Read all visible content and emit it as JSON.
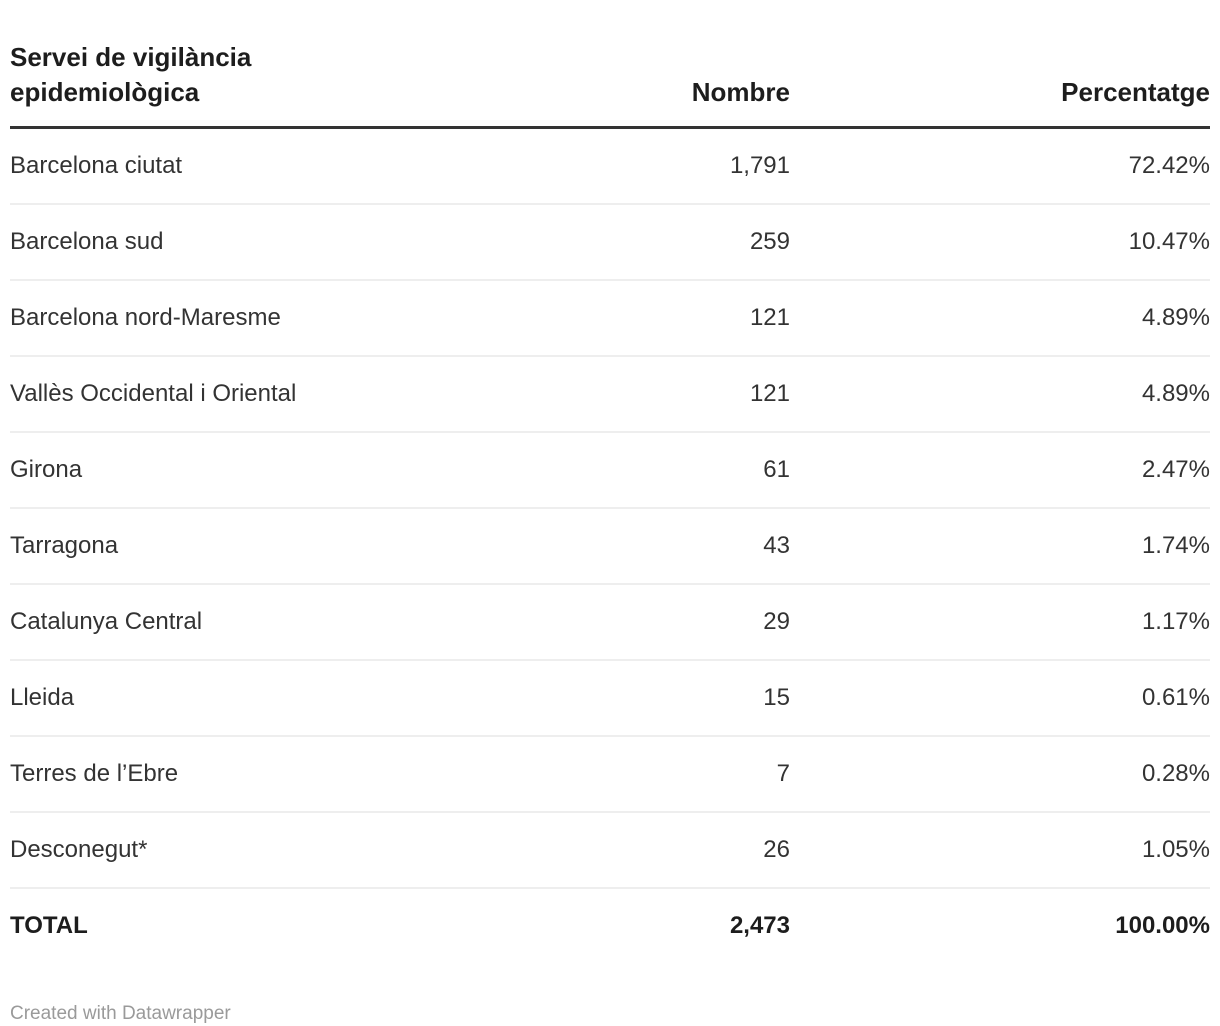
{
  "header": {
    "col1": "Servei de vigilància epidemiològica",
    "col2": "Nombre",
    "col3": "Percentatge"
  },
  "rows": [
    {
      "label": "Barcelona ciutat",
      "nombre": "1,791",
      "percentatge": "72.42%"
    },
    {
      "label": "Barcelona sud",
      "nombre": "259",
      "percentatge": "10.47%"
    },
    {
      "label": "Barcelona nord-Maresme",
      "nombre": "121",
      "percentatge": "4.89%"
    },
    {
      "label": "Vallès Occidental i Oriental",
      "nombre": "121",
      "percentatge": "4.89%"
    },
    {
      "label": "Girona",
      "nombre": "61",
      "percentatge": "2.47%"
    },
    {
      "label": "Tarragona",
      "nombre": "43",
      "percentatge": "1.74%"
    },
    {
      "label": "Catalunya Central",
      "nombre": "29",
      "percentatge": "1.17%"
    },
    {
      "label": "Lleida",
      "nombre": "15",
      "percentatge": "0.61%"
    },
    {
      "label": "Terres de l’Ebre",
      "nombre": "7",
      "percentatge": "0.28%"
    },
    {
      "label": "Desconegut*",
      "nombre": "26",
      "percentatge": "1.05%"
    }
  ],
  "total": {
    "label": "TOTAL",
    "nombre": "2,473",
    "percentatge": "100.00%"
  },
  "footer": {
    "credit": "Created with Datawrapper"
  },
  "colors": {
    "text": "#333333",
    "header_text": "#1d1d1d",
    "header_border": "#333333",
    "row_border": "#eeeeee",
    "footer_text": "#9a9a9a",
    "background": "#ffffff"
  },
  "chart_data": {
    "type": "table",
    "title": "Servei de vigilància epidemiològica",
    "columns": [
      "Servei de vigilància epidemiològica",
      "Nombre",
      "Percentatge"
    ],
    "rows": [
      [
        "Barcelona ciutat",
        1791,
        "72.42%"
      ],
      [
        "Barcelona sud",
        259,
        "10.47%"
      ],
      [
        "Barcelona nord-Maresme",
        121,
        "4.89%"
      ],
      [
        "Vallès Occidental i Oriental",
        121,
        "4.89%"
      ],
      [
        "Girona",
        61,
        "2.47%"
      ],
      [
        "Tarragona",
        43,
        "1.74%"
      ],
      [
        "Catalunya Central",
        29,
        "1.17%"
      ],
      [
        "Lleida",
        15,
        "0.61%"
      ],
      [
        "Terres de l’Ebre",
        7,
        "0.28%"
      ],
      [
        "Desconegut*",
        26,
        "1.05%"
      ]
    ],
    "total_row": [
      "TOTAL",
      2473,
      "100.00%"
    ],
    "layout_hints": {
      "first_column_align": "left",
      "numeric_columns_align": "right",
      "header_rule": "thick dark line under header",
      "row_rules": "thin light gray lines between rows"
    }
  }
}
